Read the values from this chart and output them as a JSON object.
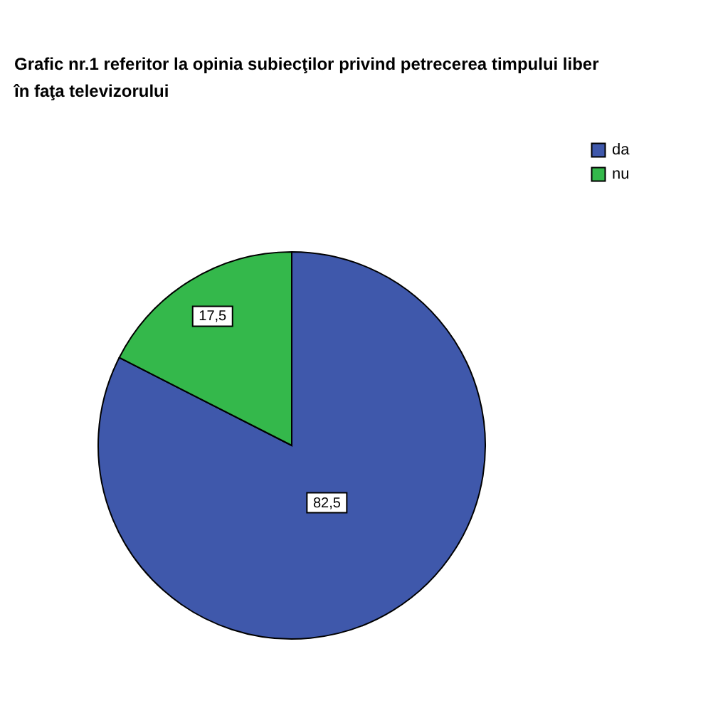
{
  "chart_data": {
    "type": "pie",
    "title": "Grafic nr.1 referitor la opinia subiecţilor privind petrecerea timpului liber în faţa televizorului",
    "categories": [
      "da",
      "nu"
    ],
    "values": [
      82.5,
      17.5
    ],
    "colors": [
      "#3f58ab",
      "#34b84b"
    ],
    "value_labels": [
      "82,5",
      "17,5"
    ],
    "legend": "top right"
  }
}
